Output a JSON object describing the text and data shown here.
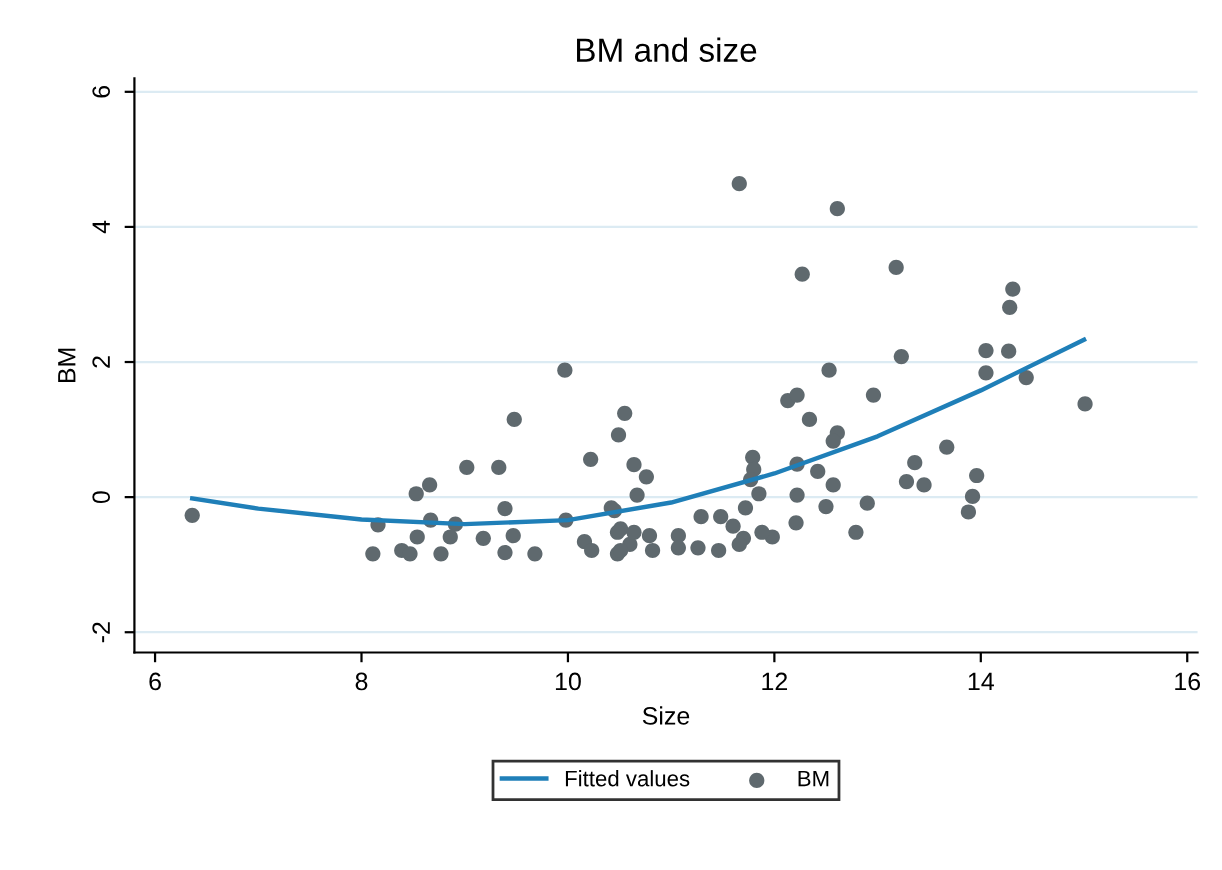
{
  "chart_data": {
    "type": "scatter",
    "title": "BM and size",
    "xlabel": "Size",
    "ylabel": "BM",
    "xlim": [
      5.8,
      16.1
    ],
    "ylim": [
      -2.3,
      6.2
    ],
    "xticks": [
      6,
      8,
      10,
      12,
      14,
      16
    ],
    "yticks": [
      -2,
      0,
      2,
      4,
      6
    ],
    "grid": "y",
    "legend": "bottom",
    "series": [
      {
        "name": "Fitted values",
        "type": "line",
        "color": "#1f7fb8",
        "marker": "none",
        "line_style": "solid",
        "x": [
          6.36,
          7,
          8,
          9,
          10,
          11,
          12,
          13,
          14,
          15
        ],
        "values": [
          -0.02,
          -0.17,
          -0.33,
          -0.4,
          -0.34,
          -0.08,
          0.35,
          0.9,
          1.58,
          2.33
        ]
      },
      {
        "name": "BM",
        "color": "#5f696e",
        "marker": "circle",
        "x": [
          6.36,
          9.97,
          9.48,
          10.55,
          10.49,
          10.22,
          9.02,
          9.33,
          8.66,
          8.53,
          9.39,
          8.16,
          8.67,
          8.91,
          9.98,
          8.86,
          8.54,
          9.18,
          9.47,
          8.11,
          8.39,
          8.47,
          8.77,
          9.39,
          9.68,
          10.16,
          10.23,
          10.42,
          10.51,
          10.64,
          10.67,
          10.48,
          10.6,
          11.66,
          12.61,
          12.27,
          13.18,
          14.31,
          14.28,
          14.05,
          14.27,
          13.23,
          14.05,
          14.44,
          12.53,
          15.01,
          12.96,
          12.13,
          12.22,
          12.34,
          12.61,
          12.57,
          13.67,
          13.36,
          10.76,
          11.79,
          11.8,
          11.77,
          12.22,
          12.42,
          13.28,
          13.45,
          13.96,
          13.92,
          13.88,
          12.9,
          12.57,
          12.5,
          12.22,
          11.85,
          11.72,
          12.21,
          12.79,
          11.98,
          11.88,
          10.45,
          11.29,
          11.48,
          11.6,
          11.7,
          10.48,
          10.64,
          10.79,
          11.07,
          11.26,
          11.46,
          11.66,
          10.51,
          10.82,
          11.07
        ],
        "values": [
          -0.27,
          1.88,
          1.15,
          1.24,
          0.92,
          0.56,
          0.44,
          0.44,
          0.18,
          0.05,
          -0.17,
          -0.41,
          -0.34,
          -0.4,
          -0.34,
          -0.59,
          -0.59,
          -0.61,
          -0.57,
          -0.84,
          -0.79,
          -0.84,
          -0.84,
          -0.82,
          -0.84,
          -0.66,
          -0.79,
          -0.16,
          -0.47,
          0.48,
          0.03,
          -0.84,
          -0.7,
          4.64,
          4.27,
          3.3,
          3.4,
          3.08,
          2.81,
          2.17,
          2.16,
          2.08,
          1.84,
          1.77,
          1.88,
          1.38,
          1.51,
          1.43,
          1.51,
          1.15,
          0.95,
          0.83,
          0.74,
          0.51,
          0.3,
          0.59,
          0.41,
          0.26,
          0.49,
          0.38,
          0.23,
          0.18,
          0.32,
          0.01,
          -0.22,
          -0.09,
          0.18,
          -0.14,
          0.03,
          0.05,
          -0.16,
          -0.38,
          -0.52,
          -0.59,
          -0.52,
          -0.2,
          -0.29,
          -0.29,
          -0.43,
          -0.61,
          -0.52,
          -0.52,
          -0.57,
          -0.57,
          -0.75,
          -0.79,
          -0.7,
          -0.79,
          -0.79,
          -0.75
        ]
      }
    ]
  }
}
